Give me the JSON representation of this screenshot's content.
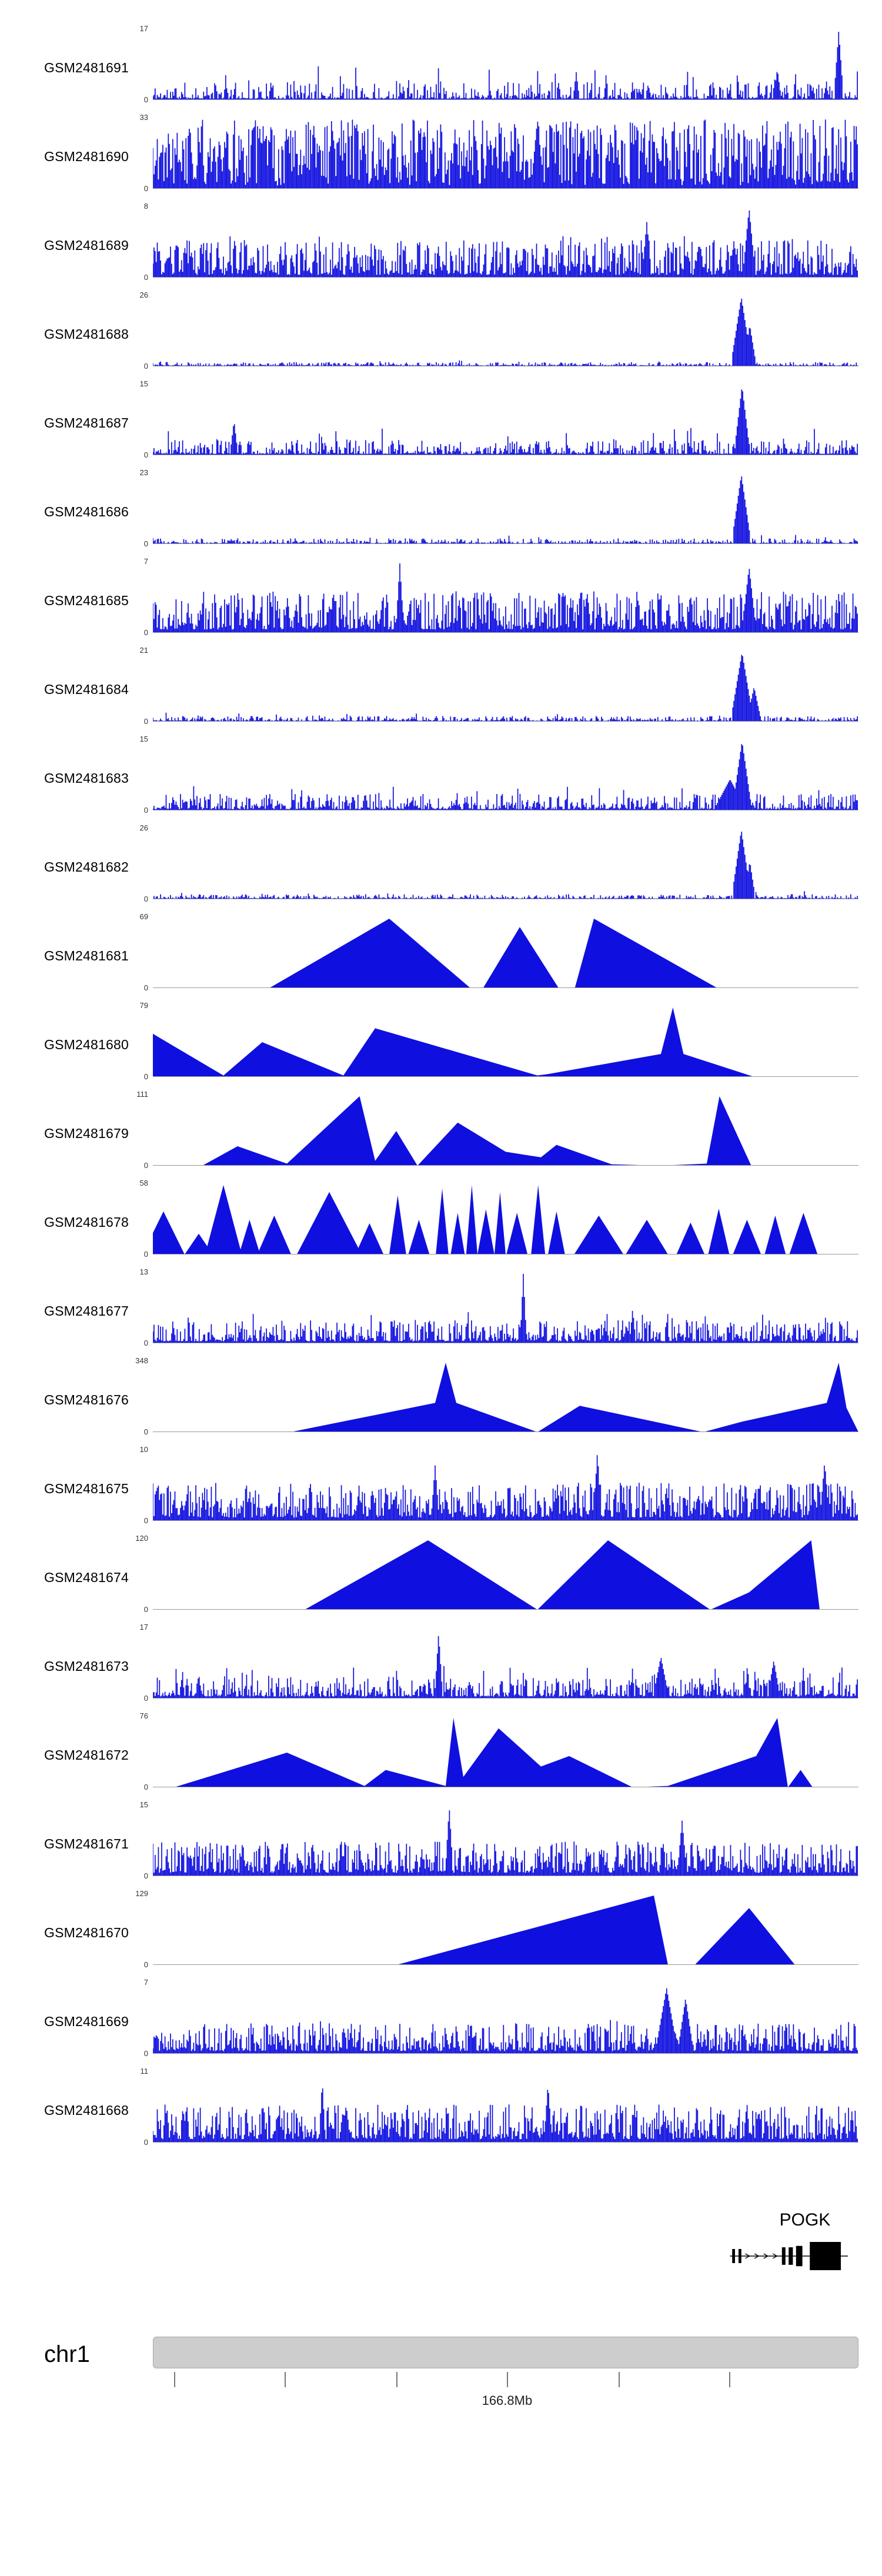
{
  "colors": {
    "signal": "#0f0fe0",
    "axis_text": "#333333",
    "gene": "#000000",
    "chrom_bar": "#cdcdcd",
    "chrom_border": "#a8a8a8"
  },
  "chart_data": {
    "type": "area",
    "description": "Genome browser coverage tracks for 24 GEO samples over chr1 near 166.8Mb, gene POGK",
    "chromosome": {
      "name": "chr1"
    },
    "axis": {
      "tick_label": "166.8Mb",
      "ticks": [
        0.03,
        0.187,
        0.345,
        0.502,
        0.66,
        0.817
      ],
      "label_tick_index": 3
    },
    "gene": {
      "name": "POGK",
      "strand": "right",
      "label_x": 0.888,
      "line": [
        0.818,
        0.985
      ],
      "chevrons": [
        0.843,
        0.856,
        0.869,
        0.882
      ],
      "exons": [
        {
          "x": 0.823,
          "w": 0.004,
          "h": 0.5
        },
        {
          "x": 0.832,
          "w": 0.004,
          "h": 0.5
        },
        {
          "x": 0.894,
          "w": 0.005,
          "h": 0.62
        },
        {
          "x": 0.904,
          "w": 0.006,
          "h": 0.62
        },
        {
          "x": 0.916,
          "w": 0.009,
          "h": 0.72
        },
        {
          "x": 0.953,
          "w": 0.044,
          "h": 1.0
        }
      ]
    },
    "tracks": [
      {
        "name": "GSM2481691",
        "ymin": 0,
        "ymax": 17,
        "style": "noise",
        "seed": 11,
        "bars": 640,
        "floor": 0.02,
        "amp": 0.24,
        "shape": 3.0,
        "rare": 0.025,
        "rareAmp": 0.5,
        "peaks": [
          {
            "x": 0.972,
            "w": 0.006,
            "h": 1.0
          },
          {
            "x": 0.885,
            "w": 0.005,
            "h": 0.45
          },
          {
            "x": 0.6,
            "w": 0.004,
            "h": 0.4
          }
        ]
      },
      {
        "name": "GSM2481690",
        "ymin": 0,
        "ymax": 33,
        "style": "noise",
        "seed": 22,
        "bars": 640,
        "floor": 0.05,
        "amp": 0.95,
        "shape": 1.2,
        "rare": 0.08,
        "rareAmp": 1.0,
        "peaks": [
          {
            "x": 0.545,
            "w": 0.008,
            "h": 1.0
          }
        ]
      },
      {
        "name": "GSM2481689",
        "ymin": 0,
        "ymax": 8,
        "style": "noise",
        "seed": 33,
        "bars": 640,
        "floor": 0.04,
        "amp": 0.5,
        "shape": 1.9,
        "rare": 0.05,
        "rareAmp": 0.6,
        "peaks": [
          {
            "x": 0.845,
            "w": 0.008,
            "h": 1.0
          },
          {
            "x": 0.7,
            "w": 0.006,
            "h": 0.8
          }
        ]
      },
      {
        "name": "GSM2481688",
        "ymin": 0,
        "ymax": 26,
        "style": "noise",
        "seed": 44,
        "bars": 640,
        "floor": 0.012,
        "amp": 0.05,
        "shape": 2.5,
        "rare": 0.012,
        "rareAmp": 0.1,
        "peaks": [
          {
            "x": 0.834,
            "w": 0.013,
            "h": 1.0
          },
          {
            "x": 0.846,
            "w": 0.008,
            "h": 0.6
          }
        ]
      },
      {
        "name": "GSM2481687",
        "ymin": 0,
        "ymax": 15,
        "style": "noise",
        "seed": 55,
        "bars": 640,
        "floor": 0.02,
        "amp": 0.2,
        "shape": 2.6,
        "rare": 0.03,
        "rareAmp": 0.4,
        "peaks": [
          {
            "x": 0.835,
            "w": 0.01,
            "h": 1.0
          },
          {
            "x": 0.115,
            "w": 0.005,
            "h": 0.5
          }
        ]
      },
      {
        "name": "GSM2481686",
        "ymin": 0,
        "ymax": 23,
        "style": "noise",
        "seed": 66,
        "bars": 640,
        "floor": 0.012,
        "amp": 0.07,
        "shape": 2.6,
        "rare": 0.015,
        "rareAmp": 0.14,
        "peaks": [
          {
            "x": 0.834,
            "w": 0.012,
            "h": 1.0
          }
        ]
      },
      {
        "name": "GSM2481685",
        "ymin": 0,
        "ymax": 7,
        "style": "noise",
        "seed": 77,
        "bars": 640,
        "floor": 0.05,
        "amp": 0.55,
        "shape": 1.8,
        "rare": 0.05,
        "rareAmp": 0.5,
        "peaks": [
          {
            "x": 0.35,
            "w": 0.005,
            "h": 1.0
          },
          {
            "x": 0.845,
            "w": 0.009,
            "h": 0.95
          }
        ]
      },
      {
        "name": "GSM2481684",
        "ymin": 0,
        "ymax": 21,
        "style": "noise",
        "seed": 88,
        "bars": 640,
        "floor": 0.012,
        "amp": 0.07,
        "shape": 2.6,
        "rare": 0.02,
        "rareAmp": 0.13,
        "peaks": [
          {
            "x": 0.835,
            "w": 0.014,
            "h": 1.0
          },
          {
            "x": 0.852,
            "w": 0.009,
            "h": 0.5
          }
        ]
      },
      {
        "name": "GSM2481683",
        "ymin": 0,
        "ymax": 15,
        "style": "noise",
        "seed": 99,
        "bars": 640,
        "floor": 0.02,
        "amp": 0.22,
        "shape": 2.5,
        "rare": 0.03,
        "rareAmp": 0.35,
        "peaks": [
          {
            "x": 0.835,
            "w": 0.012,
            "h": 1.0
          },
          {
            "x": 0.818,
            "w": 0.02,
            "h": 0.45
          }
        ]
      },
      {
        "name": "GSM2481682",
        "ymin": 0,
        "ymax": 26,
        "style": "noise",
        "seed": 110,
        "bars": 640,
        "floor": 0.012,
        "amp": 0.06,
        "shape": 2.8,
        "rare": 0.012,
        "rareAmp": 0.12,
        "peaks": [
          {
            "x": 0.834,
            "w": 0.012,
            "h": 1.0
          },
          {
            "x": 0.846,
            "w": 0.007,
            "h": 0.55
          }
        ]
      },
      {
        "name": "GSM2481681",
        "ymin": 0,
        "ymax": 69,
        "style": "poly",
        "points": [
          [
            0.165,
            0
          ],
          [
            0.335,
            1
          ],
          [
            0.45,
            0
          ],
          [
            0.468,
            0
          ],
          [
            0.52,
            0.88
          ],
          [
            0.575,
            0
          ],
          [
            0.598,
            0
          ],
          [
            0.625,
            1
          ],
          [
            0.8,
            0
          ]
        ]
      },
      {
        "name": "GSM2481680",
        "ymin": 0,
        "ymax": 79,
        "style": "poly",
        "points": [
          [
            0.0,
            0.62
          ],
          [
            0.1,
            0.02
          ],
          [
            0.155,
            0.5
          ],
          [
            0.27,
            0.02
          ],
          [
            0.315,
            0.7
          ],
          [
            0.545,
            0.02
          ],
          [
            0.56,
            0.04
          ],
          [
            0.72,
            0.33
          ],
          [
            0.737,
            1
          ],
          [
            0.752,
            0.33
          ],
          [
            0.852,
            0
          ]
        ]
      },
      {
        "name": "GSM2481679",
        "ymin": 0,
        "ymax": 111,
        "style": "poly",
        "points": [
          [
            0.07,
            0
          ],
          [
            0.12,
            0.28
          ],
          [
            0.19,
            0.03
          ],
          [
            0.293,
            1
          ],
          [
            0.315,
            0.07
          ],
          [
            0.345,
            0.5
          ],
          [
            0.375,
            0
          ],
          [
            0.432,
            0.62
          ],
          [
            0.5,
            0.2
          ],
          [
            0.55,
            0.12
          ],
          [
            0.572,
            0.3
          ],
          [
            0.65,
            0.02
          ],
          [
            0.72,
            0
          ],
          [
            0.785,
            0.03
          ],
          [
            0.803,
            1
          ],
          [
            0.848,
            0
          ]
        ]
      },
      {
        "name": "GSM2481678",
        "ymin": 0,
        "ymax": 58,
        "style": "triangles",
        "triangles": [
          [
            0.015,
            0.03,
            0.62
          ],
          [
            0.065,
            0.02,
            0.3
          ],
          [
            0.1,
            0.026,
            1.0
          ],
          [
            0.137,
            0.015,
            0.5
          ],
          [
            0.172,
            0.024,
            0.56
          ],
          [
            0.25,
            0.046,
            0.9
          ],
          [
            0.307,
            0.02,
            0.45
          ],
          [
            0.347,
            0.012,
            0.85
          ],
          [
            0.377,
            0.015,
            0.5
          ],
          [
            0.41,
            0.009,
            0.95
          ],
          [
            0.432,
            0.01,
            0.6
          ],
          [
            0.452,
            0.008,
            1.0
          ],
          [
            0.472,
            0.012,
            0.65
          ],
          [
            0.492,
            0.008,
            0.9
          ],
          [
            0.516,
            0.015,
            0.6
          ],
          [
            0.546,
            0.01,
            1.0
          ],
          [
            0.572,
            0.012,
            0.62
          ],
          [
            0.632,
            0.035,
            0.56
          ],
          [
            0.7,
            0.03,
            0.5
          ],
          [
            0.762,
            0.02,
            0.46
          ],
          [
            0.802,
            0.015,
            0.66
          ],
          [
            0.842,
            0.02,
            0.5
          ],
          [
            0.882,
            0.015,
            0.56
          ],
          [
            0.922,
            0.02,
            0.6
          ]
        ]
      },
      {
        "name": "GSM2481677",
        "ymin": 0,
        "ymax": 13,
        "style": "noise",
        "seed": 150,
        "bars": 640,
        "floor": 0.03,
        "amp": 0.3,
        "shape": 2.2,
        "rare": 0.035,
        "rareAmp": 0.45,
        "peaks": [
          {
            "x": 0.525,
            "w": 0.004,
            "h": 1.0
          },
          {
            "x": 0.68,
            "w": 0.004,
            "h": 0.5
          }
        ]
      },
      {
        "name": "GSM2481676",
        "ymin": 0,
        "ymax": 348,
        "style": "poly",
        "points": [
          [
            0.195,
            0
          ],
          [
            0.4,
            0.42
          ],
          [
            0.415,
            1
          ],
          [
            0.43,
            0.42
          ],
          [
            0.545,
            0
          ],
          [
            0.605,
            0.38
          ],
          [
            0.78,
            0
          ],
          [
            0.835,
            0.15
          ],
          [
            0.955,
            0.42
          ],
          [
            0.972,
            1
          ],
          [
            0.983,
            0.35
          ],
          [
            1.0,
            0
          ]
        ]
      },
      {
        "name": "GSM2481675",
        "ymin": 0,
        "ymax": 10,
        "style": "noise",
        "seed": 170,
        "bars": 640,
        "floor": 0.05,
        "amp": 0.5,
        "shape": 1.8,
        "rare": 0.06,
        "rareAmp": 0.55,
        "peaks": [
          {
            "x": 0.63,
            "w": 0.005,
            "h": 1.0
          },
          {
            "x": 0.4,
            "w": 0.005,
            "h": 0.8
          },
          {
            "x": 0.952,
            "w": 0.006,
            "h": 0.85
          }
        ]
      },
      {
        "name": "GSM2481674",
        "ymin": 0,
        "ymax": 120,
        "style": "poly",
        "points": [
          [
            0.215,
            0
          ],
          [
            0.39,
            1
          ],
          [
            0.545,
            0
          ],
          [
            0.645,
            1
          ],
          [
            0.79,
            0
          ],
          [
            0.845,
            0.25
          ],
          [
            0.933,
            1
          ],
          [
            0.945,
            0
          ]
        ]
      },
      {
        "name": "GSM2481673",
        "ymin": 0,
        "ymax": 17,
        "style": "noise",
        "seed": 190,
        "bars": 640,
        "floor": 0.03,
        "amp": 0.28,
        "shape": 2.2,
        "rare": 0.04,
        "rareAmp": 0.5,
        "peaks": [
          {
            "x": 0.405,
            "w": 0.005,
            "h": 0.95
          },
          {
            "x": 0.72,
            "w": 0.01,
            "h": 0.6
          },
          {
            "x": 0.88,
            "w": 0.008,
            "h": 0.55
          }
        ]
      },
      {
        "name": "GSM2481672",
        "ymin": 0,
        "ymax": 76,
        "style": "poly",
        "points": [
          [
            0.03,
            0
          ],
          [
            0.19,
            0.5
          ],
          [
            0.3,
            0.02
          ],
          [
            0.33,
            0.25
          ],
          [
            0.415,
            0.02
          ],
          [
            0.426,
            1
          ],
          [
            0.44,
            0.15
          ],
          [
            0.49,
            0.85
          ],
          [
            0.55,
            0.3
          ],
          [
            0.59,
            0.45
          ],
          [
            0.68,
            0
          ],
          [
            0.73,
            0.02
          ],
          [
            0.855,
            0.45
          ],
          [
            0.885,
            1
          ],
          [
            0.9,
            0
          ],
          [
            0.918,
            0.25
          ],
          [
            0.935,
            0
          ]
        ]
      },
      {
        "name": "GSM2481671",
        "ymin": 0,
        "ymax": 15,
        "style": "noise",
        "seed": 210,
        "bars": 640,
        "floor": 0.05,
        "amp": 0.45,
        "shape": 1.8,
        "rare": 0.05,
        "rareAmp": 0.5,
        "peaks": [
          {
            "x": 0.42,
            "w": 0.005,
            "h": 1.0
          },
          {
            "x": 0.75,
            "w": 0.006,
            "h": 0.8
          }
        ]
      },
      {
        "name": "GSM2481670",
        "ymin": 0,
        "ymax": 129,
        "style": "poly",
        "points": [
          [
            0.345,
            0
          ],
          [
            0.71,
            1
          ],
          [
            0.73,
            0
          ],
          [
            0.768,
            0
          ],
          [
            0.845,
            0.82
          ],
          [
            0.91,
            0
          ]
        ]
      },
      {
        "name": "GSM2481669",
        "ymin": 0,
        "ymax": 7,
        "style": "noise",
        "seed": 230,
        "bars": 640,
        "floor": 0.04,
        "amp": 0.4,
        "shape": 2.0,
        "rare": 0.05,
        "rareAmp": 0.5,
        "peaks": [
          {
            "x": 0.728,
            "w": 0.014,
            "h": 0.95
          },
          {
            "x": 0.755,
            "w": 0.01,
            "h": 0.8
          }
        ]
      },
      {
        "name": "GSM2481668",
        "ymin": 0,
        "ymax": 11,
        "style": "noise",
        "seed": 240,
        "bars": 640,
        "floor": 0.05,
        "amp": 0.5,
        "shape": 1.8,
        "rare": 0.06,
        "rareAmp": 0.5,
        "peaks": [
          {
            "x": 0.24,
            "w": 0.004,
            "h": 0.9
          },
          {
            "x": 0.56,
            "w": 0.005,
            "h": 0.85
          }
        ]
      }
    ]
  }
}
